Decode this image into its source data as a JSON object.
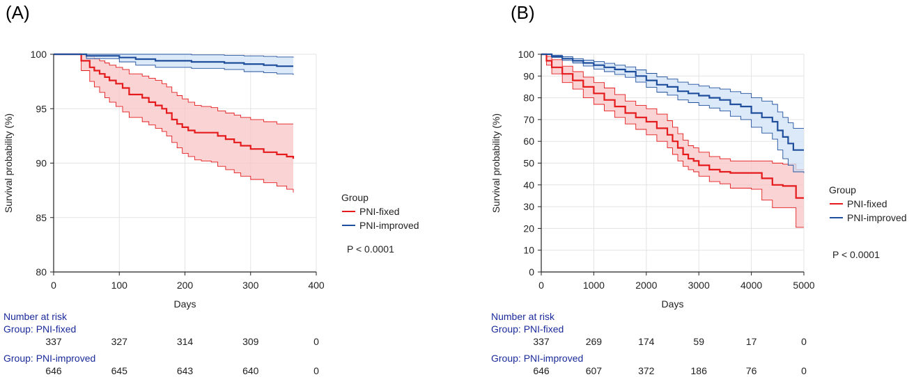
{
  "chart_data": [
    {
      "type": "line",
      "panel_label": "(A)",
      "xlabel": "Days",
      "ylabel": "Survival probability (%)",
      "xlim": [
        0,
        400
      ],
      "ylim": [
        80,
        100
      ],
      "xticks": [
        0,
        100,
        200,
        300,
        400
      ],
      "yticks": [
        80,
        85,
        90,
        95,
        100
      ],
      "grid": true,
      "legend_title": "Group",
      "legend_position": "right",
      "p_value": "P < 0.0001",
      "series": [
        {
          "name": "PNI-fixed",
          "color": "#e41a1c",
          "band_color": "#f8c6c6",
          "x": [
            0,
            30,
            42,
            55,
            62,
            70,
            78,
            85,
            95,
            105,
            115,
            135,
            145,
            155,
            165,
            172,
            180,
            188,
            196,
            205,
            215,
            225,
            240,
            250,
            262,
            275,
            285,
            300,
            320,
            340,
            355,
            365
          ],
          "y": [
            100,
            100,
            99.4,
            98.8,
            98.5,
            98.2,
            97.9,
            97.6,
            97.3,
            96.9,
            96.3,
            96.0,
            95.6,
            95.3,
            95.0,
            94.6,
            94.0,
            93.6,
            93.3,
            93.0,
            92.8,
            92.8,
            92.8,
            92.5,
            92.2,
            91.9,
            91.6,
            91.3,
            91.0,
            90.8,
            90.6,
            90.4
          ],
          "lower": [
            100,
            100,
            98.5,
            97.5,
            97.0,
            96.5,
            96.0,
            95.6,
            95.2,
            94.7,
            94.2,
            93.8,
            93.5,
            93.2,
            92.9,
            92.5,
            91.9,
            91.4,
            90.9,
            90.6,
            90.3,
            90.2,
            90.1,
            89.7,
            89.4,
            89.1,
            88.8,
            88.5,
            88.2,
            87.9,
            87.6,
            87.3
          ],
          "upper": [
            100,
            100,
            100,
            99.8,
            99.6,
            99.4,
            99.2,
            99.0,
            98.8,
            98.6,
            98.2,
            98.0,
            97.8,
            97.6,
            97.3,
            97.0,
            96.5,
            96.2,
            95.9,
            95.6,
            95.3,
            95.2,
            95.1,
            94.8,
            94.6,
            94.4,
            94.2,
            94.0,
            93.8,
            93.6,
            93.6,
            93.6
          ]
        },
        {
          "name": "PNI-improved",
          "color": "#1f4e9c",
          "band_color": "#cfe2f5",
          "x": [
            0,
            50,
            100,
            125,
            155,
            185,
            210,
            235,
            260,
            290,
            320,
            340,
            365
          ],
          "y": [
            100,
            99.85,
            99.7,
            99.55,
            99.4,
            99.4,
            99.3,
            99.3,
            99.2,
            99.1,
            99.0,
            98.9,
            98.9
          ],
          "lower": [
            100,
            99.6,
            99.3,
            99.0,
            98.8,
            98.8,
            98.7,
            98.7,
            98.6,
            98.4,
            98.3,
            98.2,
            98.1
          ],
          "upper": [
            100,
            100,
            100,
            100,
            100,
            100,
            99.95,
            99.95,
            99.9,
            99.85,
            99.8,
            99.75,
            99.7
          ]
        }
      ],
      "risk_table": {
        "title": "Number at risk",
        "times": [
          0,
          100,
          200,
          300,
          400
        ],
        "groups": [
          {
            "label": "Group: PNI-fixed",
            "values": [
              "337",
              "327",
              "314",
              "309",
              "0"
            ]
          },
          {
            "label": "Group: PNI-improved",
            "values": [
              "646",
              "645",
              "643",
              "640",
              "0"
            ]
          }
        ]
      }
    },
    {
      "type": "line",
      "panel_label": "(B)",
      "xlabel": "Days",
      "ylabel": "Survival probability (%)",
      "xlim": [
        0,
        5000
      ],
      "ylim": [
        0,
        100
      ],
      "xticks": [
        0,
        1000,
        2000,
        3000,
        4000,
        5000
      ],
      "yticks": [
        0,
        10,
        20,
        30,
        40,
        50,
        60,
        70,
        80,
        90,
        100
      ],
      "grid": true,
      "legend_title": "Group",
      "legend_position": "right",
      "p_value": "P < 0.0001",
      "series": [
        {
          "name": "PNI-fixed",
          "color": "#e41a1c",
          "band_color": "#f8c6c6",
          "x": [
            0,
            100,
            200,
            400,
            600,
            800,
            1000,
            1200,
            1400,
            1600,
            1800,
            2000,
            2200,
            2400,
            2500,
            2600,
            2700,
            2800,
            2900,
            3000,
            3200,
            3400,
            3600,
            4000,
            4200,
            4400,
            4600,
            4800,
            4850,
            5000
          ],
          "y": [
            100,
            97,
            94,
            91,
            88,
            85,
            82,
            79,
            76,
            73,
            71,
            69,
            66,
            63,
            60,
            57,
            54,
            52,
            51,
            49,
            47,
            46,
            45.5,
            45.5,
            43,
            40,
            39.5,
            39.5,
            34,
            34
          ],
          "lower": [
            100,
            95,
            91,
            87,
            84,
            80,
            77,
            74,
            71,
            68,
            65.5,
            63,
            60,
            57,
            54,
            51,
            48.5,
            47,
            46,
            44,
            41.5,
            40.5,
            38.5,
            38,
            33,
            29.5,
            29.5,
            29.5,
            20.5,
            20.5
          ],
          "upper": [
            100,
            99,
            97.5,
            94.5,
            92,
            89.5,
            87,
            84.5,
            81.5,
            78.5,
            76.5,
            75,
            72.5,
            69.5,
            66.5,
            63.5,
            60.5,
            58,
            57,
            55,
            53,
            52,
            51,
            51,
            51,
            50,
            49.5,
            49.5,
            47,
            47
          ]
        },
        {
          "name": "PNI-improved",
          "color": "#1f4e9c",
          "band_color": "#cfe2f5",
          "x": [
            0,
            200,
            400,
            600,
            800,
            1000,
            1200,
            1400,
            1600,
            1800,
            2000,
            2200,
            2400,
            2600,
            2800,
            3000,
            3200,
            3400,
            3600,
            3800,
            4000,
            4200,
            4400,
            4500,
            4600,
            4700,
            4800,
            5000
          ],
          "y": [
            100,
            99,
            98,
            97,
            96,
            95,
            94,
            93,
            92,
            90,
            88,
            86,
            85,
            83,
            82,
            81,
            80,
            79,
            77,
            76,
            73,
            71,
            69,
            65,
            62,
            59,
            56,
            56
          ],
          "lower": [
            100,
            98.5,
            97.2,
            96,
            94.6,
            93.2,
            92,
            90.7,
            89.4,
            87.2,
            84.8,
            82.6,
            81.2,
            79,
            77.8,
            76.5,
            75.3,
            74,
            71.5,
            70,
            66.5,
            63.8,
            61,
            56,
            52,
            49,
            46,
            45.5
          ],
          "upper": [
            100,
            99.6,
            98.9,
            98,
            97.3,
            96.6,
            95.8,
            95,
            94.2,
            92.8,
            91.2,
            89.6,
            88.6,
            87.2,
            86.2,
            85.4,
            84.6,
            84,
            82.8,
            82,
            80,
            78.5,
            77,
            73.5,
            71,
            68.5,
            66,
            66
          ]
        }
      ],
      "risk_table": {
        "title": "Number at risk",
        "times": [
          0,
          1000,
          2000,
          3000,
          4000,
          5000
        ],
        "groups": [
          {
            "label": "Group: PNI-fixed",
            "values": [
              "337",
              "269",
              "174",
              "59",
              "17",
              "0"
            ]
          },
          {
            "label": "Group: PNI-improved",
            "values": [
              "646",
              "607",
              "372",
              "186",
              "76",
              "0"
            ]
          }
        ]
      }
    }
  ]
}
